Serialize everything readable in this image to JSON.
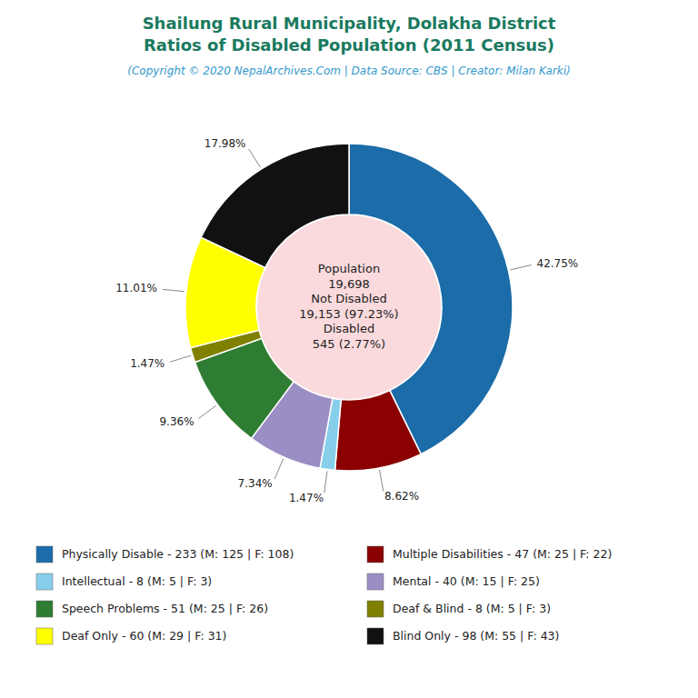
{
  "chart_data": {
    "type": "pie",
    "title": [
      "Shailung Rural Municipality, Dolakha District",
      "Ratios of Disabled Population (2011 Census)"
    ],
    "subtitle": "(Copyright © 2020 NepalArchives.Com | Data Source: CBS | Creator: Milan Karki)",
    "categories": [
      "Physically Disable - 233 (M: 125 | F: 108)",
      "Multiple Disabilities - 47 (M: 25 | F: 22)",
      "Intellectual - 8 (M: 5 | F: 3)",
      "Mental - 40 (M: 15 | F: 25)",
      "Speech Problems - 51 (M: 25 | F: 26)",
      "Deaf & Blind - 8 (M: 5 | F: 3)",
      "Deaf Only - 60 (M: 29 | F: 31)",
      "Blind Only - 98 (M: 55 | F: 43)"
    ],
    "values": [
      42.75,
      8.62,
      1.47,
      7.34,
      9.36,
      1.47,
      11.01,
      17.98
    ],
    "value_labels": [
      "42.75%",
      "8.62%",
      "1.47%",
      "7.34%",
      "9.36%",
      "1.47%",
      "11.01%",
      "17.98%"
    ],
    "colors": [
      "#1b6ca8",
      "#8b0000",
      "#87ceeb",
      "#9b8ec4",
      "#2e7d32",
      "#808000",
      "#ffff00",
      "#111111"
    ],
    "data_labels": true,
    "legend": "bottom",
    "annotations": [
      "Population",
      "19,698",
      "Not Disabled",
      "19,153 (97.23%)",
      "Disabled",
      "545 (2.77%)"
    ]
  }
}
